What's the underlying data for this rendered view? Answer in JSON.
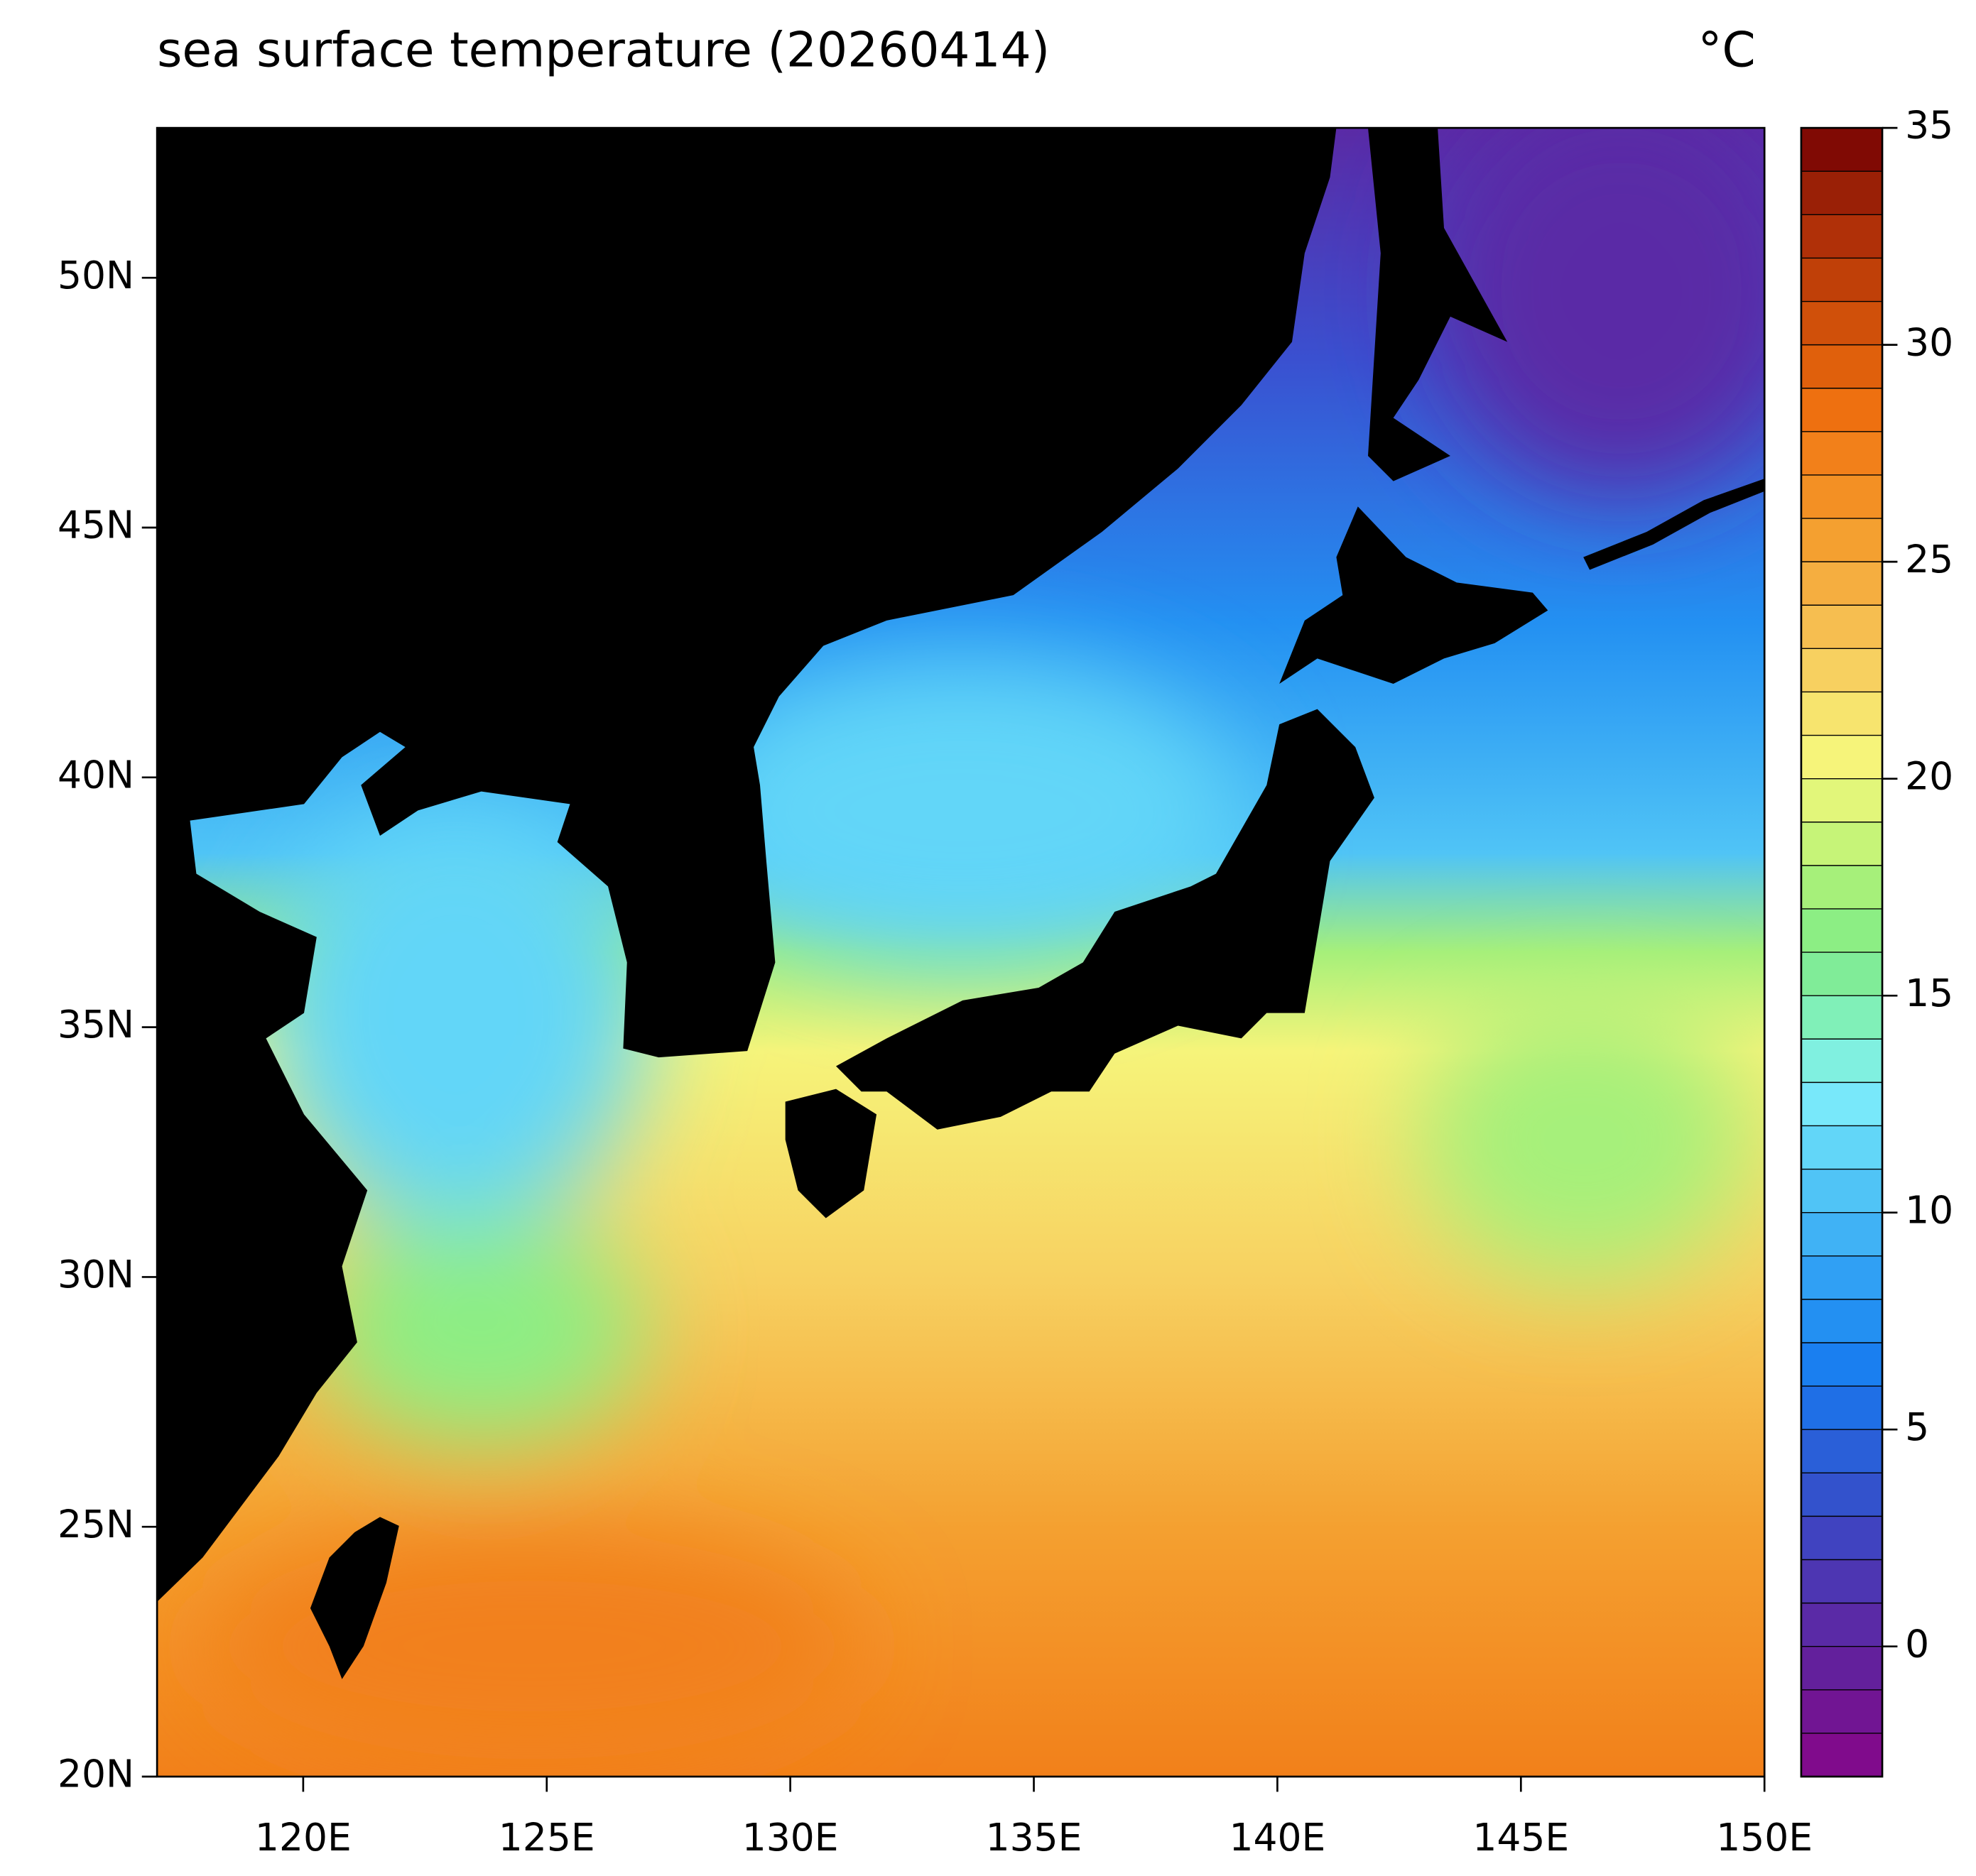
{
  "chart_data": {
    "type": "map",
    "title": "sea surface temperature (20260414)",
    "units": "°C",
    "xlim": [
      117,
      150
    ],
    "ylim": [
      20,
      53
    ],
    "xticks": [
      {
        "value": 120,
        "label": "120E"
      },
      {
        "value": 125,
        "label": "125E"
      },
      {
        "value": 130,
        "label": "130E"
      },
      {
        "value": 135,
        "label": "135E"
      },
      {
        "value": 140,
        "label": "140E"
      },
      {
        "value": 145,
        "label": "145E"
      },
      {
        "value": 150,
        "label": "150E"
      }
    ],
    "yticks": [
      {
        "value": 20,
        "label": "20N"
      },
      {
        "value": 25,
        "label": "25N"
      },
      {
        "value": 30,
        "label": "30N"
      },
      {
        "value": 35,
        "label": "35N"
      },
      {
        "value": 40,
        "label": "40N"
      },
      {
        "value": 45,
        "label": "45N"
      },
      {
        "value": 50,
        "label": "50N"
      }
    ],
    "colorbar": {
      "levels": [
        -3,
        -2,
        -1,
        0,
        1,
        2,
        3,
        4,
        5,
        6,
        7,
        8,
        9,
        10,
        11,
        12,
        13,
        14,
        15,
        16,
        17,
        18,
        19,
        20,
        21,
        22,
        23,
        24,
        25,
        26,
        27,
        28,
        29,
        30,
        31,
        32,
        33,
        34,
        35
      ],
      "colors": [
        "#800b8c",
        "#711593",
        "#63209c",
        "#5a2aa6",
        "#4d36b2",
        "#4043c0",
        "#3352cc",
        "#2a5fd8",
        "#1f6fe6",
        "#1a7ff0",
        "#2390f2",
        "#30a0f4",
        "#40b2f5",
        "#50c4f6",
        "#62d6f8",
        "#78e8fa",
        "#80f0e0",
        "#80f0b8",
        "#80ec98",
        "#8cee84",
        "#a6f07a",
        "#c6f478",
        "#e2f67a",
        "#f6f47a",
        "#f7e46e",
        "#f7d060",
        "#f6be50",
        "#f5ae40",
        "#f4a030",
        "#f39024",
        "#f2801a",
        "#ee7010",
        "#e0600c",
        "#d0500a",
        "#c04008",
        "#b03008",
        "#9a2006",
        "#800a04"
      ],
      "ticks": [
        0,
        5,
        10,
        15,
        20,
        25,
        30,
        35
      ]
    },
    "land_color": "#000000"
  }
}
